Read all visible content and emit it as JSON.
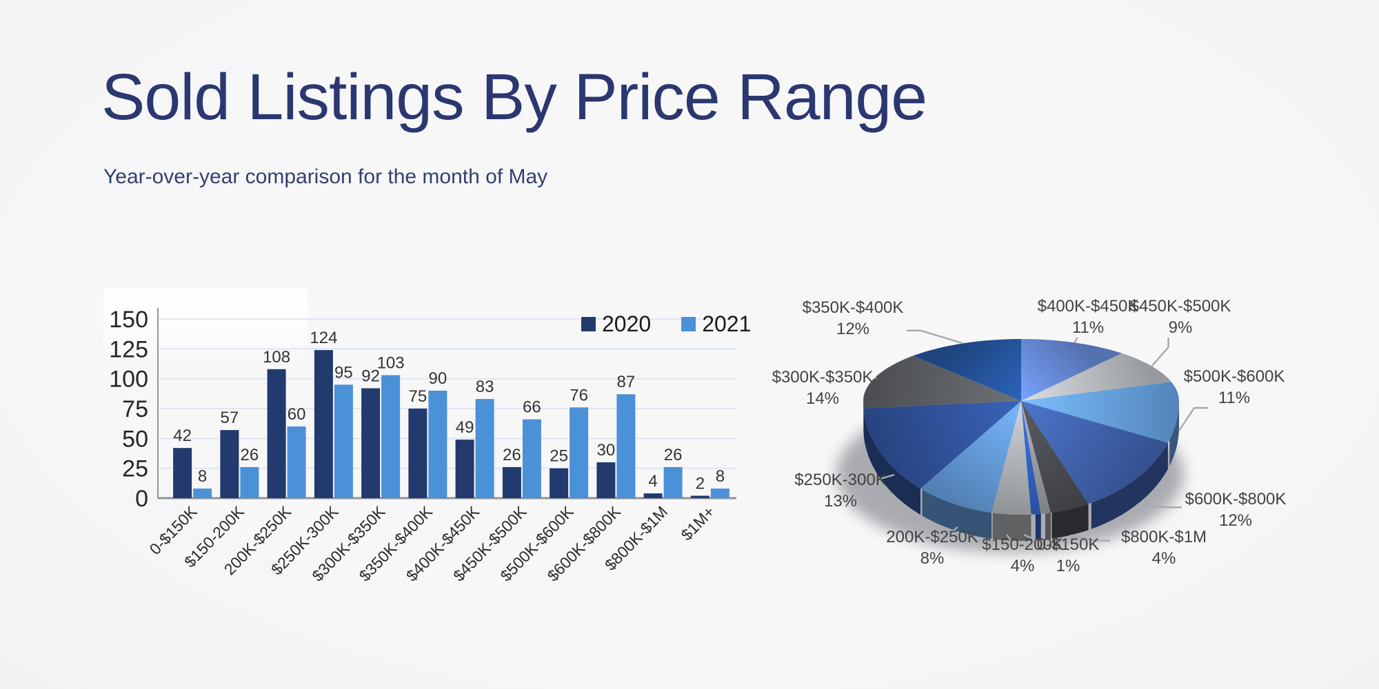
{
  "header": {
    "title": "Sold Listings By Price Range",
    "subtitle": "Year-over-year comparison for the month of May",
    "title_color": "#2b3770"
  },
  "colors": {
    "background": "#f5f5f6",
    "grid": "#dfe5f0",
    "axis": "#8f949b",
    "tick_text": "#252525",
    "value_text": "#333333",
    "pie_label_text": "#424242",
    "leader_line": "#a8abae",
    "shadow": "#2d323e"
  },
  "chart_data": [
    {
      "type": "bar",
      "title": "Sold Listings By Price Range",
      "categories": [
        "0-$150K",
        "$150-200K",
        "200K-$250K",
        "$250K-300K",
        "$300K-$350K",
        "$350K-$400K",
        "$400K-$450K",
        "$450K-$500K",
        "$500K-$600K",
        "$600K-$800K",
        "$800K-$1M",
        "$1M+"
      ],
      "series": [
        {
          "name": "2020",
          "color": "#223a6d",
          "values": [
            42,
            57,
            108,
            124,
            92,
            75,
            49,
            26,
            25,
            30,
            4,
            2
          ]
        },
        {
          "name": "2021",
          "color": "#4b91d7",
          "values": [
            8,
            26,
            60,
            95,
            103,
            90,
            83,
            66,
            76,
            87,
            26,
            8
          ]
        }
      ],
      "ylim": [
        0,
        150
      ],
      "yticks": [
        0,
        25,
        50,
        75,
        100,
        125,
        150
      ],
      "grid": true,
      "legend_position": "top-right",
      "value_labels": true
    },
    {
      "type": "pie",
      "style": "3d",
      "slices": [
        {
          "label": "0-$150K",
          "percent": 1,
          "color": "#2f5cb9",
          "label_shown": true
        },
        {
          "label": "$150-200K",
          "percent": 4,
          "color": "#a4a7ab",
          "label_shown": true
        },
        {
          "label": "200K-$250K",
          "percent": 8,
          "color": "#5d90cc",
          "label_shown": true
        },
        {
          "label": "$250K-300K",
          "percent": 13,
          "color": "#2d4d91",
          "label_shown": true
        },
        {
          "label": "$300K-$350K",
          "percent": 14,
          "color": "#56595d",
          "label_shown": true
        },
        {
          "label": "$350K-$400K",
          "percent": 12,
          "color": "#224e92",
          "label_shown": true
        },
        {
          "label": "$400K-$450K",
          "percent": 11,
          "color": "#5f80c8",
          "label_shown": true
        },
        {
          "label": "$450K-$500K",
          "percent": 9,
          "color": "#abaeb2",
          "label_shown": true
        },
        {
          "label": "$500K-$600K",
          "percent": 11,
          "color": "#6096d4",
          "label_shown": true
        },
        {
          "label": "$600K-$800K",
          "percent": 12,
          "color": "#3c5ca2",
          "label_shown": true
        },
        {
          "label": "$800K-$1M",
          "percent": 4,
          "color": "#46494e",
          "label_shown": true
        },
        {
          "label": "$1M+",
          "percent": 1,
          "color": "#8e9196",
          "label_shown": false
        }
      ]
    }
  ]
}
